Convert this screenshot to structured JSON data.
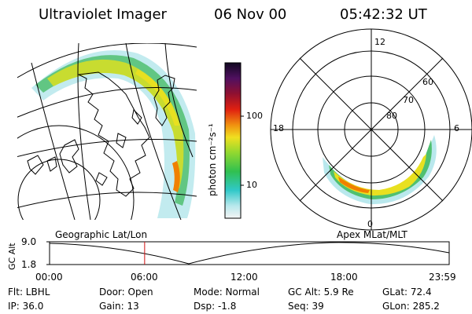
{
  "header": {
    "instrument": "Ultraviolet Imager",
    "date": "06 Nov 00",
    "time": "05:42:32 UT"
  },
  "colorbar": {
    "label": "photon cm⁻²s⁻¹",
    "tick_100": "100",
    "tick_10": "10"
  },
  "polar_plot": {
    "mlt_12": "12",
    "mlt_18": "18",
    "mlt_6": "6",
    "mlt_0": "0",
    "lat_60": "60",
    "lat_70": "70",
    "lat_80": "80"
  },
  "captions": {
    "left": "Geographic Lat/Lon",
    "right": "Apex MLat/MLT"
  },
  "timeline": {
    "y_label": "GC Alt",
    "y_top": "9.0",
    "y_bottom": "1.8",
    "ticks": [
      "00:00",
      "06:00",
      "12:00",
      "18:00",
      "23:59"
    ],
    "current_time_fraction": 0.2379
  },
  "info": {
    "flt": "Flt: LBHL",
    "door": "Door: Open",
    "mode": "Mode: Normal",
    "gc_alt": "GC Alt: 5.9 Re",
    "glat": "GLat:  72.4",
    "ip": "IP: 36.0",
    "gain": "Gain: 13",
    "dsp": "Dsp:     -1.8",
    "seq": "Seq: 39",
    "glon": "GLon: 285.2"
  },
  "colors": {
    "marker": "#d01010",
    "aurora_high": "#f08000",
    "aurora_mid": "#e8e020",
    "aurora_low": "#40c060",
    "aurora_faint": "#a0e0e8"
  }
}
